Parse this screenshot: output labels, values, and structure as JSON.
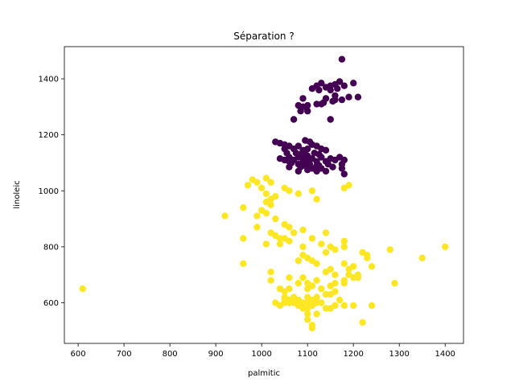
{
  "chart_data": {
    "type": "scatter",
    "title": "Séparation ?",
    "xlabel": "palmitic",
    "ylabel": "linoleic",
    "xlim": [
      570,
      1440
    ],
    "ylim": [
      455,
      1515
    ],
    "xticks": [
      600,
      700,
      800,
      900,
      1000,
      1100,
      1200,
      1300,
      1400
    ],
    "yticks": [
      600,
      800,
      1000,
      1200,
      1400
    ],
    "grid": false,
    "legend": "none",
    "series": [
      {
        "color": "#440154",
        "points": [
          [
            1175,
            1470
          ],
          [
            1120,
            1375
          ],
          [
            1130,
            1385
          ],
          [
            1140,
            1370
          ],
          [
            1150,
            1375
          ],
          [
            1160,
            1380
          ],
          [
            1165,
            1365
          ],
          [
            1170,
            1390
          ],
          [
            1180,
            1375
          ],
          [
            1200,
            1385
          ],
          [
            1110,
            1365
          ],
          [
            1125,
            1360
          ],
          [
            1150,
            1360
          ],
          [
            1160,
            1340
          ],
          [
            1190,
            1335
          ],
          [
            1210,
            1335
          ],
          [
            1090,
            1330
          ],
          [
            1140,
            1330
          ],
          [
            1155,
            1320
          ],
          [
            1130,
            1310
          ],
          [
            1120,
            1310
          ],
          [
            1135,
            1315
          ],
          [
            1160,
            1325
          ],
          [
            1175,
            1325
          ],
          [
            1080,
            1305
          ],
          [
            1090,
            1300
          ],
          [
            1100,
            1305
          ],
          [
            1085,
            1285
          ],
          [
            1100,
            1285
          ],
          [
            1070,
            1255
          ],
          [
            1150,
            1255
          ],
          [
            1095,
            1180
          ],
          [
            1105,
            1175
          ],
          [
            1030,
            1175
          ],
          [
            1040,
            1170
          ],
          [
            1050,
            1165
          ],
          [
            1060,
            1160
          ],
          [
            1080,
            1160
          ],
          [
            1110,
            1165
          ],
          [
            1120,
            1160
          ],
          [
            1050,
            1150
          ],
          [
            1070,
            1150
          ],
          [
            1090,
            1145
          ],
          [
            1100,
            1150
          ],
          [
            1130,
            1150
          ],
          [
            1140,
            1145
          ],
          [
            1055,
            1135
          ],
          [
            1075,
            1135
          ],
          [
            1085,
            1130
          ],
          [
            1095,
            1135
          ],
          [
            1115,
            1135
          ],
          [
            1125,
            1130
          ],
          [
            1060,
            1120
          ],
          [
            1080,
            1120
          ],
          [
            1100,
            1125
          ],
          [
            1110,
            1115
          ],
          [
            1130,
            1120
          ],
          [
            1150,
            1115
          ],
          [
            1170,
            1120
          ],
          [
            1040,
            1115
          ],
          [
            1050,
            1110
          ],
          [
            1070,
            1110
          ],
          [
            1090,
            1105
          ],
          [
            1100,
            1100
          ],
          [
            1120,
            1105
          ],
          [
            1140,
            1105
          ],
          [
            1160,
            1110
          ],
          [
            1180,
            1110
          ],
          [
            1065,
            1100
          ],
          [
            1080,
            1095
          ],
          [
            1095,
            1090
          ],
          [
            1105,
            1095
          ],
          [
            1125,
            1090
          ],
          [
            1145,
            1095
          ],
          [
            1060,
            1085
          ],
          [
            1085,
            1085
          ],
          [
            1110,
            1080
          ],
          [
            1130,
            1080
          ],
          [
            1155,
            1085
          ],
          [
            1175,
            1095
          ],
          [
            1080,
            1070
          ],
          [
            1100,
            1075
          ],
          [
            1120,
            1070
          ],
          [
            1140,
            1070
          ],
          [
            1175,
            1080
          ],
          [
            1060,
            1105
          ],
          [
            1120,
            1090
          ],
          [
            1100,
            1110
          ],
          [
            1090,
            1120
          ],
          [
            1180,
            1060
          ]
        ]
      },
      {
        "color": "#fde725",
        "points": [
          [
            610,
            650
          ],
          [
            920,
            910
          ],
          [
            960,
            940
          ],
          [
            960,
            830
          ],
          [
            960,
            740
          ],
          [
            970,
            1020
          ],
          [
            980,
            1040
          ],
          [
            990,
            1030
          ],
          [
            1010,
            1045
          ],
          [
            1020,
            1030
          ],
          [
            1000,
            1010
          ],
          [
            1010,
            990
          ],
          [
            1020,
            970
          ],
          [
            1030,
            980
          ],
          [
            1010,
            960
          ],
          [
            1020,
            950
          ],
          [
            1000,
            930
          ],
          [
            1010,
            920
          ],
          [
            990,
            910
          ],
          [
            1030,
            900
          ],
          [
            990,
            870
          ],
          [
            1020,
            850
          ],
          [
            1030,
            840
          ],
          [
            1040,
            830
          ],
          [
            1010,
            810
          ],
          [
            1040,
            810
          ],
          [
            1050,
            1010
          ],
          [
            1060,
            1000
          ],
          [
            1080,
            990
          ],
          [
            1110,
            1000
          ],
          [
            1120,
            970
          ],
          [
            1180,
            1010
          ],
          [
            1190,
            1020
          ],
          [
            1050,
            880
          ],
          [
            1060,
            870
          ],
          [
            1070,
            850
          ],
          [
            1090,
            860
          ],
          [
            1140,
            850
          ],
          [
            1050,
            830
          ],
          [
            1060,
            820
          ],
          [
            1090,
            800
          ],
          [
            1110,
            830
          ],
          [
            1130,
            810
          ],
          [
            1150,
            800
          ],
          [
            1160,
            790
          ],
          [
            1180,
            820
          ],
          [
            1180,
            800
          ],
          [
            1220,
            780
          ],
          [
            1230,
            770
          ],
          [
            1230,
            760
          ],
          [
            1280,
            790
          ],
          [
            1350,
            760
          ],
          [
            1400,
            800
          ],
          [
            1140,
            780
          ],
          [
            1090,
            770
          ],
          [
            1100,
            760
          ],
          [
            1080,
            750
          ],
          [
            1110,
            750
          ],
          [
            1120,
            740
          ],
          [
            1180,
            740
          ],
          [
            1190,
            720
          ],
          [
            1200,
            730
          ],
          [
            1210,
            690
          ],
          [
            1180,
            680
          ],
          [
            1150,
            720
          ],
          [
            1140,
            710
          ],
          [
            1160,
            700
          ],
          [
            1020,
            710
          ],
          [
            1020,
            680
          ],
          [
            1060,
            690
          ],
          [
            1090,
            690
          ],
          [
            1120,
            680
          ],
          [
            1100,
            670
          ],
          [
            1080,
            670
          ],
          [
            1110,
            660
          ],
          [
            1130,
            650
          ],
          [
            1150,
            660
          ],
          [
            1160,
            640
          ],
          [
            1180,
            670
          ],
          [
            1200,
            690
          ],
          [
            1240,
            730
          ],
          [
            1290,
            670
          ],
          [
            1050,
            640
          ],
          [
            1050,
            620
          ],
          [
            1060,
            610
          ],
          [
            1070,
            620
          ],
          [
            1080,
            610
          ],
          [
            1090,
            600
          ],
          [
            1100,
            600
          ],
          [
            1110,
            610
          ],
          [
            1120,
            600
          ],
          [
            1130,
            600
          ],
          [
            1070,
            600
          ],
          [
            1080,
            590
          ],
          [
            1090,
            580
          ],
          [
            1100,
            580
          ],
          [
            1110,
            590
          ],
          [
            1060,
            600
          ],
          [
            1050,
            610
          ],
          [
            1100,
            560
          ],
          [
            1120,
            560
          ],
          [
            1140,
            580
          ],
          [
            1150,
            580
          ],
          [
            1160,
            590
          ],
          [
            1180,
            590
          ],
          [
            1200,
            590
          ],
          [
            1240,
            590
          ],
          [
            1220,
            530
          ],
          [
            1100,
            540
          ],
          [
            1110,
            520
          ],
          [
            1110,
            510
          ],
          [
            1120,
            620
          ],
          [
            1150,
            630
          ],
          [
            1170,
            610
          ],
          [
            1140,
            630
          ],
          [
            1100,
            620
          ],
          [
            1060,
            650
          ],
          [
            1040,
            650
          ],
          [
            1100,
            650
          ],
          [
            1160,
            670
          ],
          [
            1190,
            700
          ],
          [
            1210,
            700
          ],
          [
            1030,
            600
          ],
          [
            1040,
            590
          ],
          [
            1050,
            600
          ]
        ]
      }
    ]
  }
}
